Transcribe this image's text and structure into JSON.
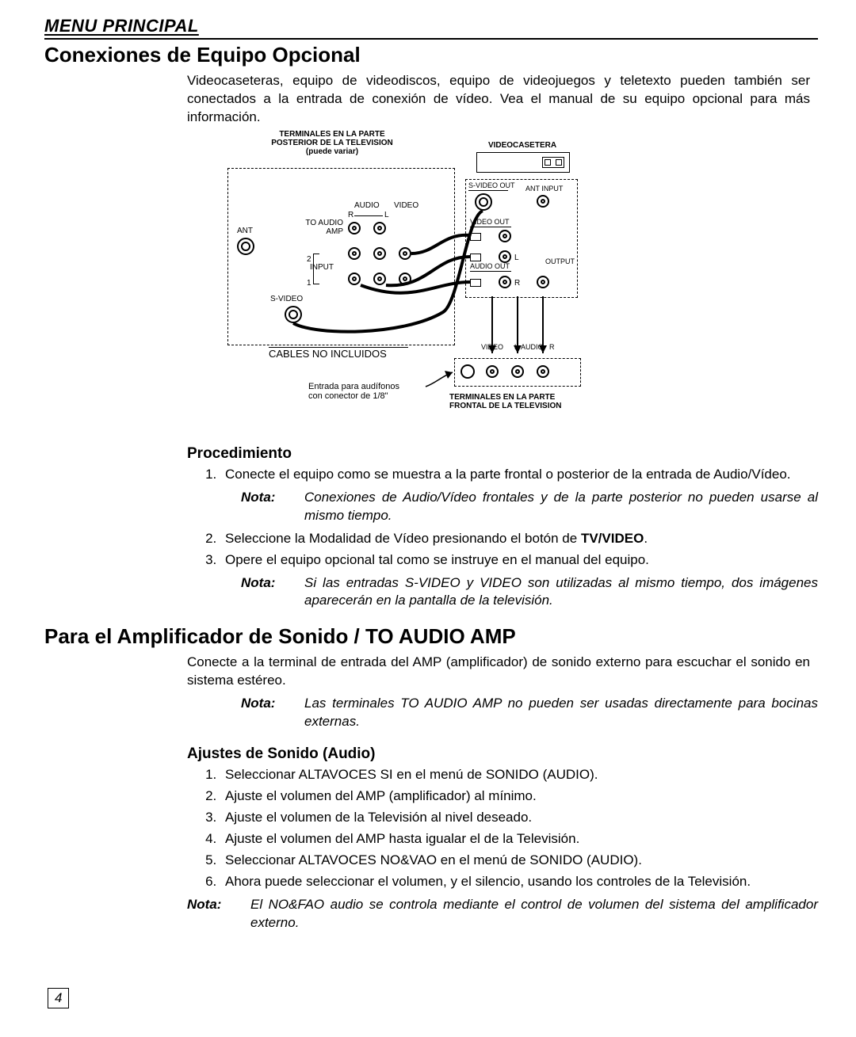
{
  "header": {
    "menu": "MENU PRINCIPAL"
  },
  "section1": {
    "title": "Conexiones de Equipo Opcional",
    "intro": "Videocaseteras, equipo de videodiscos, equipo de videojuegos y teletexto pueden también ser conectados a la entrada de conexión de vídeo. Vea el manual de su equipo opcional para más información.",
    "diagram": {
      "backpanel_label_l1": "TERMINALES EN LA PARTE",
      "backpanel_label_l2": "POSTERIOR DE LA TELEVISION",
      "backpanel_label_l3": "(puede variar)",
      "vcr_label": "VIDEOCASETERA",
      "svideo_out": "S-VIDEO OUT",
      "ant_input": "ANT INPUT",
      "video_out": "VIDEO OUT",
      "audio_out": "AUDIO OUT",
      "output": "OUTPUT",
      "audio": "AUDIO",
      "video": "VIDEO",
      "rl": "R",
      "ll": "L",
      "to_audio_amp_l1": "TO AUDIO",
      "to_audio_amp_l2": "AMP",
      "ant": "ANT",
      "input": "INPUT",
      "num2": "2",
      "num1": "1",
      "svideo": "S-VIDEO",
      "cables": "CABLES NO INCLUIDOS",
      "front_video": "VIDEO",
      "front_l": "L",
      "front_audio": "AUDIO",
      "front_r": "R",
      "headphone_l1": "Entrada para audífonos",
      "headphone_l2": "con conector de 1/8\"",
      "front_label_l1": "TERMINALES EN LA PARTE",
      "front_label_l2": "FRONTAL DE LA TELEVISION"
    },
    "proc_title": "Procedimiento",
    "steps": [
      "Conecte el equipo como se muestra a la parte frontal o posterior de la entrada de Audio/Vídeo.",
      "Seleccione la Modalidad de Vídeo presionando el botón de TV/VIDEO.",
      "Opere el equipo opcional tal como se instruye en el manual del equipo."
    ],
    "note_label": "Nota:",
    "note1": "Conexiones de Audio/Vídeo frontales y de la parte posterior no pueden usarse al mismo tiempo.",
    "note2": "Si las entradas S-VIDEO y VIDEO son utilizadas al mismo tiempo, dos imágenes aparecerán en la pantalla de la televisión.",
    "tvvideo_bold": "TV/VIDEO"
  },
  "section2": {
    "title": "Para el Amplificador de Sonido / TO AUDIO AMP",
    "intro": "Conecte a la terminal de entrada del AMP (amplificador) de sonido externo para escuchar el sonido en sistema estéreo.",
    "note_label": "Nota:",
    "note1": "Las terminales TO AUDIO AMP no pueden ser usadas directamente para bocinas externas.",
    "sub_title": "Ajustes de Sonido (Audio)",
    "steps": [
      "Seleccionar ALTAVOCES SI en el menú de SONIDO (AUDIO).",
      "Ajuste el volumen del AMP (amplificador) al mínimo.",
      "Ajuste el volumen de la Televisión al nivel deseado.",
      "Ajuste el volumen del AMP hasta igualar el de la Televisión.",
      "Seleccionar ALTAVOCES NO&VAO en el menú de SONIDO (AUDIO).",
      "Ahora puede seleccionar el volumen, y el silencio, usando los controles de la Televisión."
    ],
    "note2": "El NO&FAO audio se controla mediante el control de volumen del sistema del amplificador externo."
  },
  "page_number": "4"
}
